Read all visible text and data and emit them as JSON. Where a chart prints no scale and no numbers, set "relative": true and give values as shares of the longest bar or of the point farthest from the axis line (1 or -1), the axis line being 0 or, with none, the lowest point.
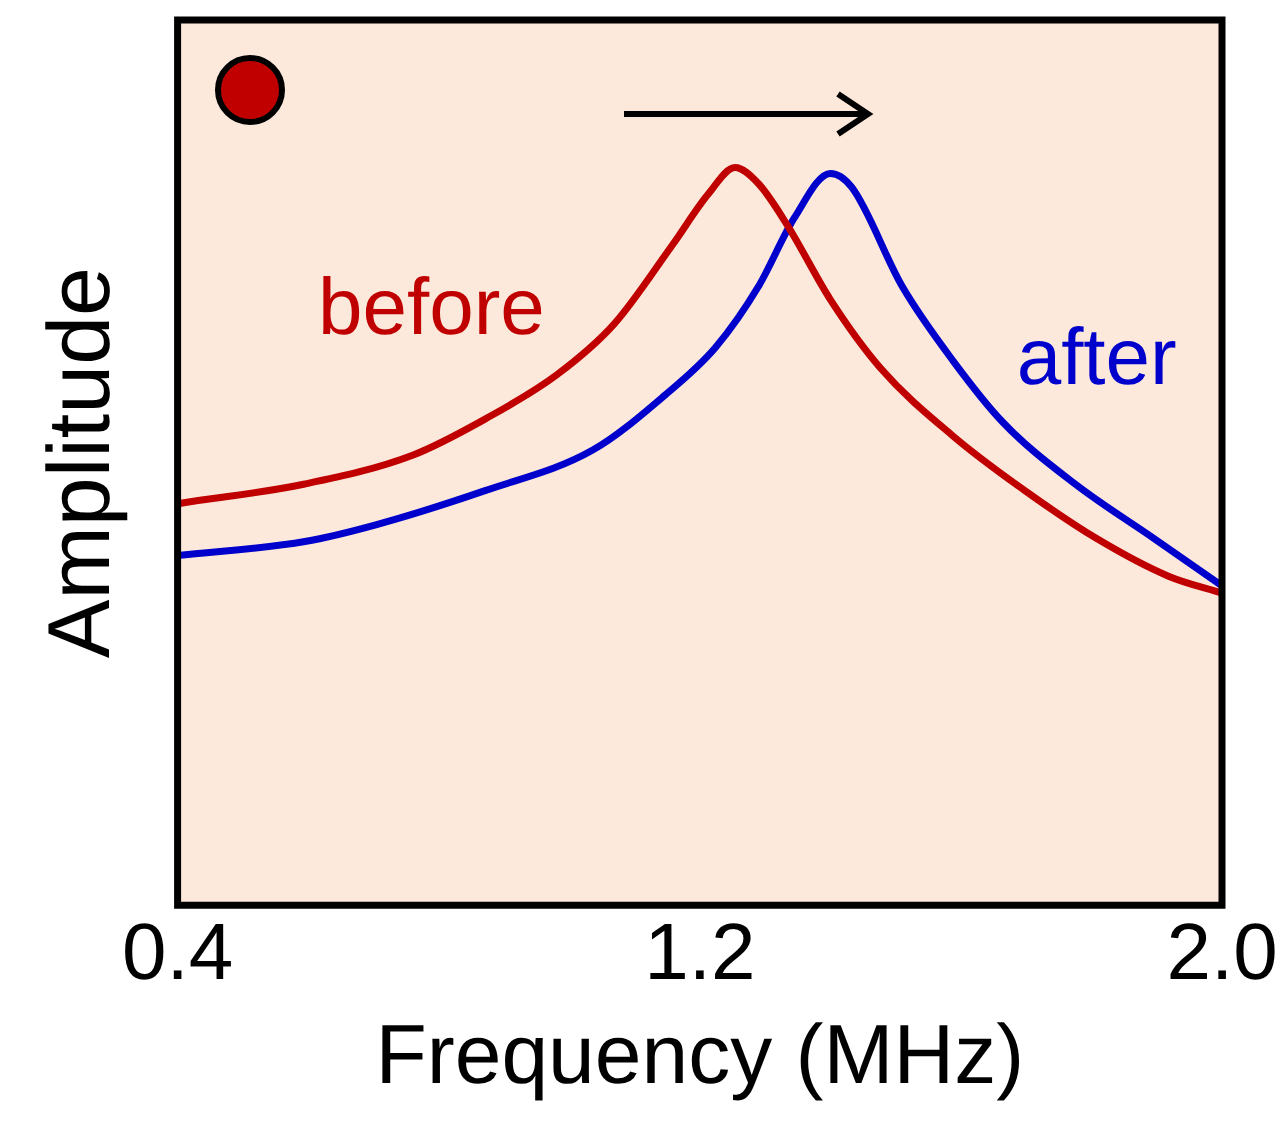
{
  "chart_data": {
    "type": "line",
    "xlabel": "Frequency (MHz)",
    "ylabel": "Amplitude",
    "relative": true,
    "xlim": [
      0.4,
      2.0
    ],
    "xticks": [
      {
        "value": 0.4,
        "label": "0.4"
      },
      {
        "value": 1.2,
        "label": "1.2"
      },
      {
        "value": 2.0,
        "label": "2.0"
      }
    ],
    "legend": false,
    "marker": "none",
    "line_style": "solid",
    "series": [
      {
        "name": "before",
        "color": "#c00000",
        "x": [
          0.405,
          0.595,
          0.76,
          0.871,
          0.981,
          1.069,
          1.158,
          1.213,
          1.254,
          1.29,
          1.334,
          1.4,
          1.477,
          1.588,
          1.698,
          1.808,
          1.918,
          2.0
        ],
        "values": [
          0.545,
          0.571,
          0.61,
          0.659,
          0.719,
          0.788,
          0.895,
          0.964,
          1,
          0.978,
          0.922,
          0.821,
          0.728,
          0.636,
          0.562,
          0.497,
          0.446,
          0.423
        ]
      },
      {
        "name": "after",
        "color": "#0000cc",
        "x": [
          0.4,
          0.595,
          0.705,
          0.871,
          1.036,
          1.146,
          1.224,
          1.29,
          1.345,
          1.4,
          1.433,
          1.51,
          1.588,
          1.665,
          1.775,
          1.896,
          2.0
        ],
        "values": [
          0.474,
          0.493,
          0.516,
          0.562,
          0.617,
          0.691,
          0.756,
          0.839,
          0.932,
          0.992,
          0.973,
          0.839,
          0.738,
          0.654,
          0.571,
          0.497,
          0.433
        ]
      }
    ]
  }
}
